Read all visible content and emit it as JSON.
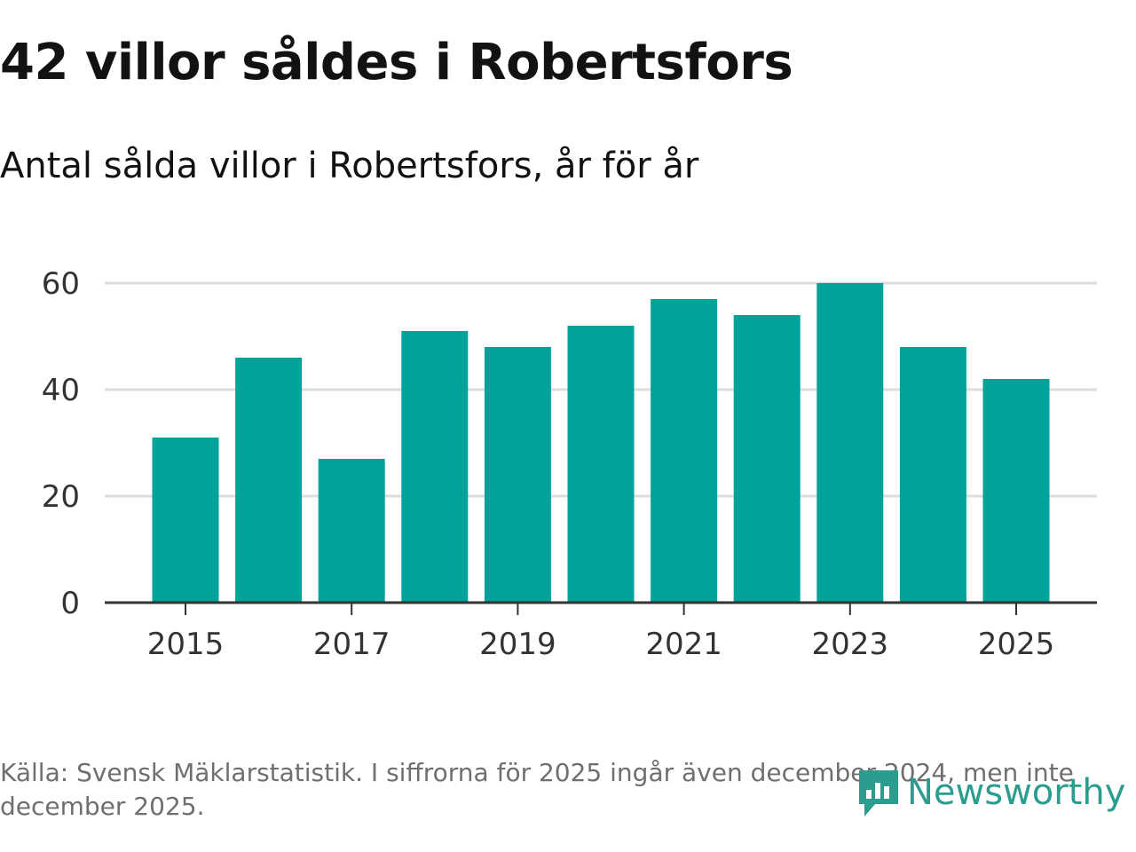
{
  "header": {
    "title": "42 villor såldes i Robertsfors",
    "subtitle": "Antal sålda villor i Robertsfors, år för år"
  },
  "footer": {
    "source": "Källa: Svensk Mäklarstatistik. I siffrorna för 2025 ingår även december 2024, men inte december 2025.",
    "logo": "Newsworthy"
  },
  "colors": {
    "bar": "#00a39a",
    "grid": "#dddddd",
    "axis": "#333333",
    "logo": "#2a9d8f"
  },
  "chart_data": {
    "type": "bar",
    "title": "42 villor såldes i Robertsfors",
    "subtitle": "Antal sålda villor i Robertsfors, år för år",
    "xlabel": "",
    "ylabel": "",
    "categories": [
      "2015",
      "2016",
      "2017",
      "2018",
      "2019",
      "2020",
      "2021",
      "2022",
      "2023",
      "2024",
      "2025"
    ],
    "values": [
      31,
      46,
      27,
      51,
      48,
      52,
      57,
      54,
      60,
      48,
      42
    ],
    "ylim": [
      0,
      60
    ],
    "yticks": [
      0,
      20,
      40,
      60
    ],
    "xticks": [
      "2015",
      "2017",
      "2019",
      "2021",
      "2023",
      "2025"
    ],
    "grid": true,
    "legend": "none"
  }
}
